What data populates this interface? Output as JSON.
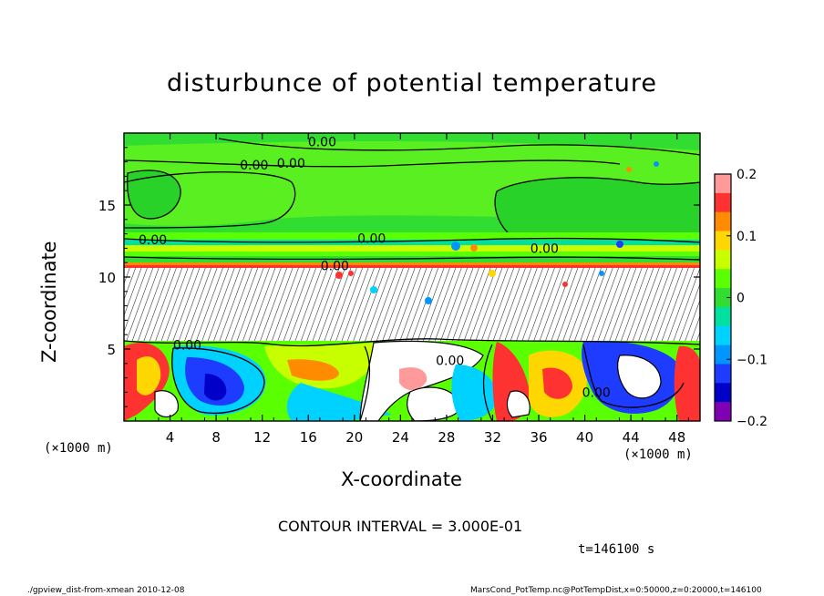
{
  "chart_data": {
    "type": "heatmap",
    "title": "disturbunce of potential temperature",
    "xlabel": "X-coordinate",
    "ylabel": "Z-coordinate",
    "x_unit": "(×1000 m)",
    "y_unit": "(×1000 m)",
    "xlim": [
      0,
      50
    ],
    "ylim": [
      0,
      20
    ],
    "x_ticks": [
      4,
      8,
      12,
      16,
      20,
      24,
      28,
      32,
      36,
      40,
      44,
      48
    ],
    "y_ticks": [
      5,
      10,
      15
    ],
    "colorbar": {
      "range": [
        -0.2,
        0.2
      ],
      "tick_values": [
        0.2,
        0.1,
        0,
        -0.1,
        -0.2
      ],
      "tick_labels": [
        "0.2",
        "0.1",
        "0",
        "−0.1",
        "−0.2"
      ],
      "colors": [
        "#ff9a9a",
        "#ff3232",
        "#ff8c00",
        "#ffd700",
        "#c8ff00",
        "#5aff00",
        "#32dd32",
        "#00e0a0",
        "#00d2ff",
        "#0096ff",
        "#1e3cff",
        "#0000c8",
        "#8200b4"
      ]
    },
    "contour_labels": [
      {
        "text": "0.00",
        "x": 17.2,
        "z": 19.4
      },
      {
        "text": "0.00",
        "x": 11.3,
        "z": 17.8
      },
      {
        "text": "0.00",
        "x": 14.5,
        "z": 17.9
      },
      {
        "text": "0.00",
        "x": 2.5,
        "z": 12.6
      },
      {
        "text": "0.00",
        "x": 21.5,
        "z": 12.7
      },
      {
        "text": "0.00",
        "x": 36.5,
        "z": 12.0
      },
      {
        "text": "0.00",
        "x": 18.3,
        "z": 10.8
      },
      {
        "text": "0.00",
        "x": 5.5,
        "z": 5.3
      },
      {
        "text": "0.00",
        "x": 28.3,
        "z": 4.2
      },
      {
        "text": "0.00",
        "x": 41.0,
        "z": 2.0
      }
    ],
    "contour_interval": "CONTOUR INTERVAL = 3.000E-01",
    "time_label": "t=146100 s"
  },
  "footer": {
    "left": "./gpview_dist-from-xmean  2010-12-08",
    "right": "MarsCond_PotTemp.nc@PotTempDist,x=0:50000,z=0:20000,t=146100"
  }
}
